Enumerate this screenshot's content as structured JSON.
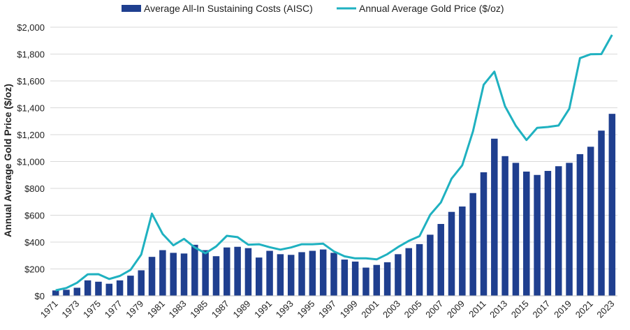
{
  "chart_data": {
    "type": "bar",
    "title": "",
    "xlabel": "",
    "ylabel": "Annual Average Gold Price ($/oz)",
    "ylim": [
      0,
      2000
    ],
    "yticks": [
      "$0",
      "$200",
      "$400",
      "$600",
      "$800",
      "$1,000",
      "$1,200",
      "$1,400",
      "$1,600",
      "$1,800",
      "$2,000"
    ],
    "grid": true,
    "legend": "top-center",
    "x": [
      1971,
      1972,
      1973,
      1974,
      1975,
      1976,
      1977,
      1978,
      1979,
      1980,
      1981,
      1982,
      1983,
      1984,
      1985,
      1986,
      1987,
      1988,
      1989,
      1990,
      1991,
      1992,
      1993,
      1994,
      1995,
      1996,
      1997,
      1998,
      1999,
      2000,
      2001,
      2002,
      2003,
      2004,
      2005,
      2006,
      2007,
      2008,
      2009,
      2010,
      2011,
      2012,
      2013,
      2014,
      2015,
      2016,
      2017,
      2018,
      2019,
      2020,
      2021,
      2022,
      2023
    ],
    "xtick_labels": [
      "1971",
      "1973",
      "1975",
      "1977",
      "1979",
      "1981",
      "1983",
      "1985",
      "1987",
      "1989",
      "1991",
      "1993",
      "1995",
      "1997",
      "1999",
      "2001",
      "2003",
      "2005",
      "2007",
      "2009",
      "2011",
      "2013",
      "2015",
      "2017",
      "2019",
      "2021",
      "2023"
    ],
    "series": [
      {
        "name": "Average All-In Sustaining Costs (AISC)",
        "type": "bar",
        "color": "#1f3f8f",
        "values": [
          40,
          45,
          60,
          115,
          105,
          90,
          115,
          150,
          190,
          290,
          340,
          320,
          315,
          380,
          340,
          295,
          360,
          365,
          355,
          285,
          335,
          310,
          305,
          325,
          335,
          345,
          320,
          270,
          255,
          210,
          230,
          250,
          310,
          355,
          385,
          455,
          535,
          625,
          665,
          765,
          920,
          1170,
          1040,
          990,
          925,
          900,
          930,
          965,
          990,
          1055,
          1110,
          1230,
          1355
        ]
      },
      {
        "name": "Annual Average Gold Price ($/oz)",
        "type": "line",
        "color": "#1fb1c0",
        "values": [
          41,
          58,
          97,
          160,
          161,
          125,
          148,
          193,
          307,
          612,
          460,
          376,
          424,
          360,
          317,
          368,
          447,
          437,
          381,
          384,
          362,
          344,
          360,
          384,
          384,
          388,
          331,
          294,
          279,
          279,
          271,
          310,
          363,
          409,
          444,
          603,
          695,
          872,
          972,
          1225,
          1572,
          1669,
          1411,
          1266,
          1160,
          1251,
          1257,
          1268,
          1393,
          1770,
          1799,
          1800,
          1943
        ]
      }
    ]
  }
}
